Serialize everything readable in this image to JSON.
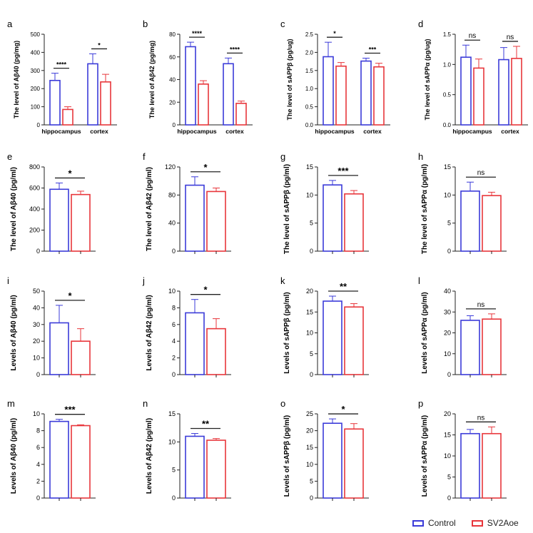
{
  "colors": {
    "control": "#3b3bd9",
    "sv2aoe": "#e8363b"
  },
  "legend": {
    "control": "Control",
    "sv2aoe": "SV2Aoe"
  },
  "chart_data": [
    {
      "id": "a",
      "type": "bar",
      "ylabel": "The level of Aβ40 (pg/mg)",
      "ylim": [
        0,
        500
      ],
      "yticks": [
        0,
        100,
        200,
        300,
        400,
        500
      ],
      "categories": [
        "hippocampus",
        "cortex"
      ],
      "series": [
        {
          "name": "Control",
          "values": [
            245,
            337
          ],
          "errors": [
            40,
            55
          ]
        },
        {
          "name": "SV2Aoe",
          "values": [
            85,
            237
          ],
          "errors": [
            15,
            42
          ]
        }
      ],
      "sig": [
        "****",
        "*"
      ]
    },
    {
      "id": "b",
      "type": "bar",
      "ylabel": "The level of Aβ42 (pg/mg)",
      "ylim": [
        0,
        80
      ],
      "yticks": [
        0,
        20,
        40,
        60,
        80
      ],
      "categories": [
        "hippocampus",
        "cortex"
      ],
      "series": [
        {
          "name": "Control",
          "values": [
            69,
            54
          ],
          "errors": [
            4,
            5
          ]
        },
        {
          "name": "SV2Aoe",
          "values": [
            36,
            19
          ],
          "errors": [
            3,
            2
          ]
        }
      ],
      "sig": [
        "****",
        "****"
      ]
    },
    {
      "id": "c",
      "type": "bar",
      "ylabel": "The level of sAPPβ (pg/ug)",
      "ylim": [
        0,
        2.5
      ],
      "yticks": [
        "0.0",
        "0.5",
        "1.0",
        "1.5",
        "2.0",
        "2.5"
      ],
      "categories": [
        "hippocampus",
        "cortex"
      ],
      "series": [
        {
          "name": "Control",
          "values": [
            1.88,
            1.76
          ],
          "errors": [
            0.4,
            0.08
          ]
        },
        {
          "name": "SV2Aoe",
          "values": [
            1.62,
            1.6
          ],
          "errors": [
            0.1,
            0.1
          ]
        }
      ],
      "sig": [
        "*",
        "***"
      ]
    },
    {
      "id": "d",
      "type": "bar",
      "ylabel": "The level of sAPPα (pg/ug)",
      "ylim": [
        0,
        1.5
      ],
      "yticks": [
        "0.0",
        "0.5",
        "1.0",
        "1.5"
      ],
      "categories": [
        "hippocampus",
        "cortex"
      ],
      "series": [
        {
          "name": "Control",
          "values": [
            1.12,
            1.08
          ],
          "errors": [
            0.2,
            0.2
          ]
        },
        {
          "name": "SV2Aoe",
          "values": [
            0.94,
            1.1
          ],
          "errors": [
            0.15,
            0.2
          ]
        }
      ],
      "sig": [
        "ns",
        "ns"
      ]
    },
    {
      "id": "e",
      "type": "bar",
      "ylabel": "The level of Aβ40 (pg/ml)",
      "ylim": [
        0,
        800
      ],
      "yticks": [
        0,
        200,
        400,
        600,
        800
      ],
      "categories": [
        ""
      ],
      "series": [
        {
          "name": "Control",
          "values": [
            588
          ],
          "errors": [
            60
          ]
        },
        {
          "name": "SV2Aoe",
          "values": [
            538
          ],
          "errors": [
            32
          ]
        }
      ],
      "sig": [
        "*"
      ]
    },
    {
      "id": "f",
      "type": "bar",
      "ylabel": "The level of Aβ42 (pg/ml)",
      "ylim": [
        0,
        120
      ],
      "yticks": [
        0,
        40,
        80,
        120
      ],
      "categories": [
        ""
      ],
      "series": [
        {
          "name": "Control",
          "values": [
            94
          ],
          "errors": [
            12
          ]
        },
        {
          "name": "SV2Aoe",
          "values": [
            85
          ],
          "errors": [
            5
          ]
        }
      ],
      "sig": [
        "*"
      ]
    },
    {
      "id": "g",
      "type": "bar",
      "ylabel": "The level of sAPPβ (pg/ml)",
      "ylim": [
        0,
        15
      ],
      "yticks": [
        0,
        5,
        10,
        15
      ],
      "categories": [
        ""
      ],
      "series": [
        {
          "name": "Control",
          "values": [
            11.8
          ],
          "errors": [
            0.8
          ]
        },
        {
          "name": "SV2Aoe",
          "values": [
            10.2
          ],
          "errors": [
            0.6
          ]
        }
      ],
      "sig": [
        "***"
      ]
    },
    {
      "id": "h",
      "type": "bar",
      "ylabel": "The level of sAPPα (pg/ml)",
      "ylim": [
        0,
        15
      ],
      "yticks": [
        0,
        5,
        10,
        15
      ],
      "categories": [
        ""
      ],
      "series": [
        {
          "name": "Control",
          "values": [
            10.7
          ],
          "errors": [
            1.6
          ]
        },
        {
          "name": "SV2Aoe",
          "values": [
            9.9
          ],
          "errors": [
            0.6
          ]
        }
      ],
      "sig": [
        "ns"
      ]
    },
    {
      "id": "i",
      "type": "bar",
      "ylabel": "Levels of Aβ40 (pg/ml)",
      "ylim": [
        0,
        50
      ],
      "yticks": [
        0,
        10,
        20,
        30,
        40,
        50
      ],
      "categories": [
        ""
      ],
      "series": [
        {
          "name": "Control",
          "values": [
            31
          ],
          "errors": [
            10.5
          ]
        },
        {
          "name": "SV2Aoe",
          "values": [
            20
          ],
          "errors": [
            7.5
          ]
        }
      ],
      "sig": [
        "*"
      ]
    },
    {
      "id": "j",
      "type": "bar",
      "ylabel": "Levels of Aβ42 (pg/ml)",
      "ylim": [
        0,
        10
      ],
      "yticks": [
        0,
        2,
        4,
        6,
        8,
        10
      ],
      "categories": [
        ""
      ],
      "series": [
        {
          "name": "Control",
          "values": [
            7.4
          ],
          "errors": [
            1.6
          ]
        },
        {
          "name": "SV2Aoe",
          "values": [
            5.5
          ],
          "errors": [
            1.2
          ]
        }
      ],
      "sig": [
        "*"
      ]
    },
    {
      "id": "k",
      "type": "bar",
      "ylabel": "Levels of sAPPβ (pg/ml)",
      "ylim": [
        0,
        20
      ],
      "yticks": [
        0,
        5,
        10,
        15,
        20
      ],
      "categories": [
        ""
      ],
      "series": [
        {
          "name": "Control",
          "values": [
            17.6
          ],
          "errors": [
            1.2
          ]
        },
        {
          "name": "SV2Aoe",
          "values": [
            16.2
          ],
          "errors": [
            0.8
          ]
        }
      ],
      "sig": [
        "**"
      ]
    },
    {
      "id": "l",
      "type": "bar",
      "ylabel": "Levels of sAPPα (pg/ml)",
      "ylim": [
        0,
        40
      ],
      "yticks": [
        0,
        10,
        20,
        30,
        40
      ],
      "categories": [
        ""
      ],
      "series": [
        {
          "name": "Control",
          "values": [
            26
          ],
          "errors": [
            2.2
          ]
        },
        {
          "name": "SV2Aoe",
          "values": [
            26.6
          ],
          "errors": [
            2.5
          ]
        }
      ],
      "sig": [
        "ns"
      ]
    },
    {
      "id": "m",
      "type": "bar",
      "ylabel": "Levels of Aβ40 (pg/ml)",
      "ylim": [
        0,
        10
      ],
      "yticks": [
        0,
        2,
        4,
        6,
        8,
        10
      ],
      "categories": [
        ""
      ],
      "series": [
        {
          "name": "Control",
          "values": [
            9.1
          ],
          "errors": [
            0.25
          ]
        },
        {
          "name": "SV2Aoe",
          "values": [
            8.6
          ],
          "errors": [
            0.1
          ]
        }
      ],
      "sig": [
        "***"
      ]
    },
    {
      "id": "n",
      "type": "bar",
      "ylabel": "Levels of Aβ42 (pg/ml)",
      "ylim": [
        0,
        15
      ],
      "yticks": [
        0,
        5,
        10,
        15
      ],
      "categories": [
        ""
      ],
      "series": [
        {
          "name": "Control",
          "values": [
            11
          ],
          "errors": [
            0.5
          ]
        },
        {
          "name": "SV2Aoe",
          "values": [
            10.3
          ],
          "errors": [
            0.3
          ]
        }
      ],
      "sig": [
        "**"
      ]
    },
    {
      "id": "o",
      "type": "bar",
      "ylabel": "Levels of sAPPβ (pg/ml)",
      "ylim": [
        0,
        25
      ],
      "yticks": [
        0,
        5,
        10,
        15,
        20,
        25
      ],
      "categories": [
        ""
      ],
      "series": [
        {
          "name": "Control",
          "values": [
            22.2
          ],
          "errors": [
            1.3
          ]
        },
        {
          "name": "SV2Aoe",
          "values": [
            20.5
          ],
          "errors": [
            1.6
          ]
        }
      ],
      "sig": [
        "*"
      ]
    },
    {
      "id": "p",
      "type": "bar",
      "ylabel": "Levels of sAPPα (pg/ml)",
      "ylim": [
        0,
        20
      ],
      "yticks": [
        0,
        5,
        10,
        15,
        20
      ],
      "categories": [
        ""
      ],
      "series": [
        {
          "name": "Control",
          "values": [
            15.3
          ],
          "errors": [
            1
          ]
        },
        {
          "name": "SV2Aoe",
          "values": [
            15.3
          ],
          "errors": [
            1.6
          ]
        }
      ],
      "sig": [
        "ns"
      ]
    }
  ]
}
